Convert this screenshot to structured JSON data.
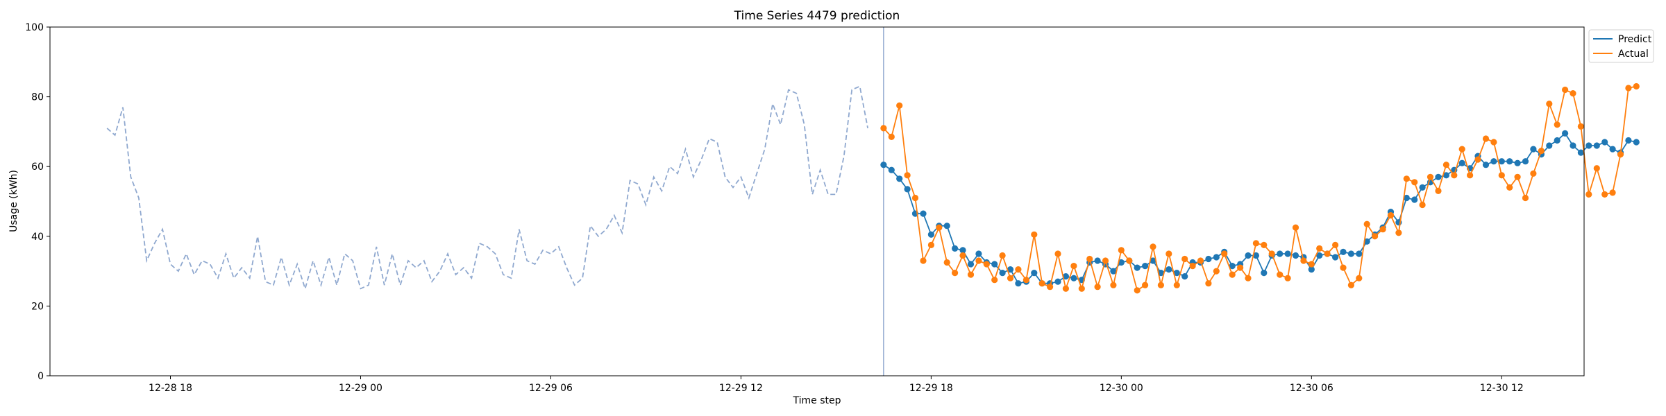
{
  "chart_data": {
    "type": "line",
    "title": "Time Series 4479 prediction",
    "xlabel": "Time step",
    "ylabel": "Usage (kWh)",
    "ylim": [
      0,
      100
    ],
    "yticks": [
      0,
      20,
      40,
      60,
      80,
      100
    ],
    "x_unit": "hours",
    "xlim": [
      -1.8,
      46.6
    ],
    "xticks": [
      {
        "value": 2,
        "label": "12-28 18"
      },
      {
        "value": 8,
        "label": "12-29 00"
      },
      {
        "value": 14,
        "label": "12-29 06"
      },
      {
        "value": 20,
        "label": "12-29 12"
      },
      {
        "value": 26,
        "label": "12-29 18"
      },
      {
        "value": 32,
        "label": "12-30 00"
      },
      {
        "value": 38,
        "label": "12-30 06"
      },
      {
        "value": 44,
        "label": "12-30 12"
      }
    ],
    "x_start": 0,
    "x_step": 0.25,
    "forecast_start": 24.5,
    "grid": false,
    "legend_position": "top-right",
    "colors": {
      "history": "#8fa8cf",
      "predict": "#1f77b4",
      "actual": "#ff7f0e",
      "vline": "#7b96c5"
    },
    "history": [
      71,
      69,
      77,
      57,
      51,
      33,
      38,
      42,
      32,
      30,
      35,
      29,
      33,
      32,
      28,
      35,
      28,
      31,
      28,
      40,
      27,
      26,
      34,
      26,
      32,
      25,
      33,
      26,
      34,
      26,
      35,
      33,
      25,
      26,
      37,
      26,
      35,
      26,
      33,
      31,
      33,
      27,
      30,
      35,
      29,
      31,
      28,
      38,
      37,
      35,
      29,
      28,
      42,
      33,
      32,
      36,
      35,
      37,
      31,
      26,
      28,
      43,
      40,
      42,
      46,
      41,
      56,
      55,
      49,
      57,
      53,
      60,
      58,
      65,
      57,
      62,
      68,
      67,
      57,
      54,
      57,
      51,
      58,
      65,
      78,
      72,
      82,
      81,
      72,
      52,
      59,
      52,
      52,
      63,
      82,
      83,
      71
    ],
    "series": [
      {
        "name": "Predict",
        "values": [
          60.5,
          59,
          56.5,
          53.5,
          46.5,
          46.5,
          40.5,
          43,
          43,
          36.5,
          36,
          32,
          35,
          32.5,
          32,
          29.5,
          30.5,
          26.5,
          27,
          29.5,
          26.5,
          26.5,
          27,
          28.5,
          28,
          27.5,
          32.5,
          33,
          32,
          30,
          32.5,
          33,
          31,
          31.5,
          33,
          29.5,
          30.5,
          29.5,
          28.5,
          32.5,
          32.5,
          33.5,
          34,
          35.5,
          31.5,
          32,
          34.5,
          34.5,
          29.5,
          34.5,
          35,
          35,
          34.5,
          34,
          30.5,
          34.5,
          35,
          34,
          35.5,
          35,
          35,
          38.5,
          40.5,
          42.5,
          47,
          44,
          51,
          50.5,
          54,
          55.5,
          57,
          57.5,
          59,
          61,
          59.5,
          63,
          60.5,
          61.5,
          61.5,
          61.5,
          61,
          61.5,
          65,
          63.5,
          66,
          67.5,
          69.5,
          66,
          64,
          66,
          66,
          67,
          65,
          64,
          67.5,
          67
        ]
      },
      {
        "name": "Actual",
        "values": [
          71,
          68.5,
          77.5,
          57.5,
          51,
          33,
          37.5,
          42.5,
          32.5,
          29.5,
          34.5,
          29,
          33,
          32,
          27.5,
          34.5,
          28,
          30.5,
          27.5,
          40.5,
          26.5,
          25.5,
          35,
          25,
          31.5,
          25,
          33.5,
          25.5,
          33,
          26,
          36,
          33,
          24.5,
          26,
          37,
          26,
          35,
          26,
          33.5,
          31.5,
          33,
          26.5,
          30,
          35,
          29,
          31,
          28,
          38,
          37.5,
          35,
          29,
          28,
          42.5,
          33,
          32,
          36.5,
          35,
          37.5,
          31,
          26,
          28,
          43.5,
          40,
          42,
          46,
          41,
          56.5,
          55.5,
          49,
          57,
          53,
          60.5,
          57.5,
          65,
          57.5,
          62,
          68,
          67,
          57.5,
          54,
          57,
          51,
          58,
          64.5,
          78,
          72,
          82,
          81,
          71.5,
          52,
          59.5,
          52,
          52.5,
          63.5,
          82.5,
          83
        ]
      }
    ]
  }
}
